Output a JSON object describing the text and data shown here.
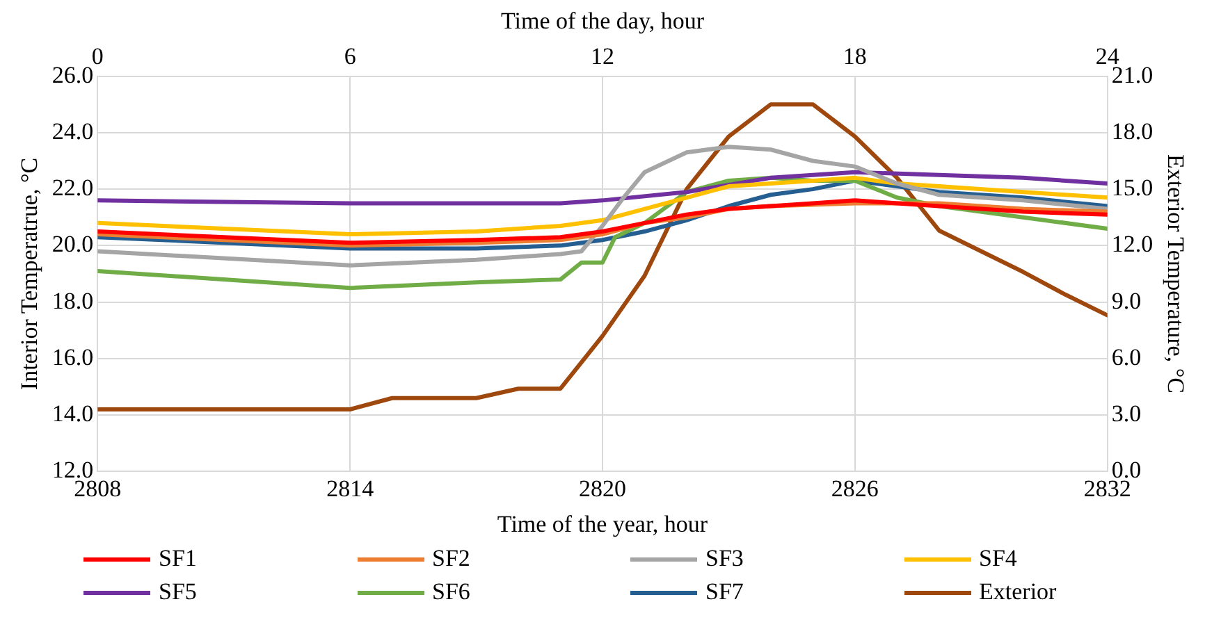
{
  "chart_data": {
    "type": "line",
    "xlabel": "Time of the year, hour",
    "x2label": "Time of the day, hour",
    "ylabel": "Interior Temperatrue, °C",
    "y2label": "Exterior Temperature, °C",
    "xlim": [
      2808,
      2832
    ],
    "xticks": [
      2808,
      2814,
      2820,
      2826,
      2832
    ],
    "x2lim": [
      0,
      24
    ],
    "x2ticks": [
      0,
      6,
      12,
      18,
      24
    ],
    "ylim": [
      12,
      26
    ],
    "yticks": [
      {
        "value": 12,
        "label": "12.0"
      },
      {
        "value": 14,
        "label": "14.0"
      },
      {
        "value": 16,
        "label": "16.0"
      },
      {
        "value": 18,
        "label": "18.0"
      },
      {
        "value": 20,
        "label": "20.0"
      },
      {
        "value": 22,
        "label": "22.0"
      },
      {
        "value": 24,
        "label": "24.0"
      },
      {
        "value": 26,
        "label": "26.0"
      }
    ],
    "y2lim": [
      0,
      21
    ],
    "y2ticks": [
      {
        "value": 0,
        "label": "0.0"
      },
      {
        "value": 3,
        "label": "3.0"
      },
      {
        "value": 6,
        "label": "6.0"
      },
      {
        "value": 9,
        "label": "9.0"
      },
      {
        "value": 12,
        "label": "12.0"
      },
      {
        "value": 15,
        "label": "15.0"
      },
      {
        "value": 18,
        "label": "18.0"
      },
      {
        "value": 21,
        "label": "21.0"
      }
    ],
    "grid": true,
    "legend": "bottom",
    "marker": "none",
    "line_style": "solid",
    "series": [
      {
        "name": "SF1",
        "color": "#ff0000",
        "x": [
          2808,
          2814,
          2817,
          2819,
          2820,
          2821,
          2822,
          2823,
          2824,
          2825,
          2826,
          2827,
          2828,
          2830,
          2832
        ],
        "values": [
          20.5,
          20.1,
          20.2,
          20.3,
          20.5,
          20.8,
          21.1,
          21.3,
          21.4,
          21.5,
          21.6,
          21.5,
          21.4,
          21.2,
          21.1
        ]
      },
      {
        "name": "SF2",
        "color": "#ed7d31",
        "x": [
          2808,
          2814,
          2817,
          2819,
          2820,
          2821,
          2822,
          2823,
          2824,
          2826,
          2828,
          2830,
          2832
        ],
        "values": [
          20.4,
          20.0,
          20.1,
          20.2,
          20.4,
          20.8,
          21.0,
          21.3,
          21.4,
          21.5,
          21.5,
          21.3,
          21.2
        ]
      },
      {
        "name": "SF3",
        "color": "#a5a5a5",
        "x": [
          2808,
          2814,
          2817,
          2819,
          2819.5,
          2820,
          2820.5,
          2821,
          2822,
          2823,
          2824,
          2825,
          2826,
          2827,
          2828,
          2830,
          2832
        ],
        "values": [
          19.8,
          19.3,
          19.5,
          19.7,
          19.8,
          20.7,
          21.7,
          22.6,
          23.3,
          23.5,
          23.4,
          23.0,
          22.8,
          22.2,
          21.8,
          21.6,
          21.3
        ]
      },
      {
        "name": "SF4",
        "color": "#ffc000",
        "x": [
          2808,
          2814,
          2817,
          2819,
          2820,
          2821,
          2822,
          2823,
          2824,
          2825,
          2826,
          2827,
          2828,
          2830,
          2832
        ],
        "values": [
          20.8,
          20.4,
          20.5,
          20.7,
          20.9,
          21.3,
          21.7,
          22.1,
          22.2,
          22.3,
          22.4,
          22.2,
          22.1,
          21.9,
          21.7
        ]
      },
      {
        "name": "SF5",
        "color": "#7030a0",
        "x": [
          2808,
          2814,
          2819,
          2820,
          2822,
          2824,
          2826,
          2828,
          2830,
          2832
        ],
        "values": [
          21.6,
          21.5,
          21.5,
          21.6,
          21.9,
          22.4,
          22.6,
          22.5,
          22.4,
          22.2
        ]
      },
      {
        "name": "SF6",
        "color": "#70ad47",
        "x": [
          2808,
          2814,
          2817,
          2819,
          2819.5,
          2820,
          2820.3,
          2821,
          2822,
          2823,
          2824,
          2825,
          2826,
          2827,
          2828,
          2830,
          2832
        ],
        "values": [
          19.1,
          18.5,
          18.7,
          18.8,
          19.4,
          19.4,
          20.3,
          20.8,
          21.9,
          22.3,
          22.4,
          22.3,
          22.3,
          21.7,
          21.4,
          21.0,
          20.6
        ]
      },
      {
        "name": "SF7",
        "color": "#255e91",
        "x": [
          2808,
          2814,
          2817,
          2819,
          2820,
          2821,
          2822,
          2823,
          2824,
          2825,
          2826,
          2827,
          2828,
          2830,
          2832
        ],
        "values": [
          20.3,
          19.9,
          19.9,
          20.0,
          20.2,
          20.5,
          20.9,
          21.4,
          21.8,
          22.0,
          22.3,
          22.1,
          21.9,
          21.7,
          21.4
        ]
      },
      {
        "name": "Exterior",
        "color": "#9e480e",
        "axis": "y2",
        "x": [
          2808,
          2814,
          2815,
          2817,
          2818,
          2819,
          2820,
          2821,
          2822,
          2823,
          2824,
          2825,
          2826,
          2827,
          2828,
          2829,
          2830,
          2831,
          2832
        ],
        "values": [
          3.3,
          3.3,
          3.9,
          3.9,
          4.4,
          4.4,
          7.2,
          10.4,
          15.0,
          17.8,
          19.5,
          19.5,
          17.8,
          15.6,
          12.8,
          11.7,
          10.6,
          9.4,
          8.3
        ]
      }
    ]
  }
}
